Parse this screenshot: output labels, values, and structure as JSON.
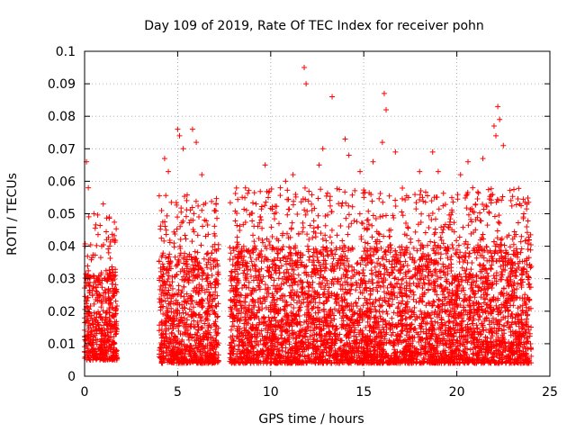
{
  "chart_data": {
    "type": "scatter",
    "title": "Day 109 of 2019, Rate Of TEC Index for receiver pohn",
    "xlabel": "GPS time / hours",
    "ylabel": "ROTI / TECUs",
    "xlim": [
      0,
      25
    ],
    "ylim": [
      0,
      0.1
    ],
    "x_ticks": [
      0,
      5,
      10,
      15,
      20,
      25
    ],
    "x_tick_labels": [
      "0",
      "5",
      "10",
      "15",
      "20",
      "25"
    ],
    "y_ticks": [
      0,
      0.01,
      0.02,
      0.03,
      0.04,
      0.05,
      0.06,
      0.07,
      0.08,
      0.09,
      0.1
    ],
    "y_tick_labels": [
      "0",
      "0.01",
      "0.02",
      "0.03",
      "0.04",
      "0.05",
      "0.06",
      "0.07",
      "0.08",
      "0.09",
      "0.1"
    ],
    "grid": true,
    "marker": "+",
    "series": [
      {
        "name": "ROTI",
        "color": "#ff0000",
        "segments": [
          {
            "x_start": 0.0,
            "x_end": 1.75,
            "y_min": 0.005,
            "y_max": 0.032
          },
          {
            "x_start": 4.0,
            "x_end": 7.2,
            "y_min": 0.004,
            "y_max": 0.038
          },
          {
            "x_start": 7.8,
            "x_end": 24.0,
            "y_min": 0.004,
            "y_max": 0.04
          }
        ],
        "gap_hours": [
          [
            1.75,
            4.0
          ],
          [
            7.2,
            7.8
          ]
        ],
        "notable_points": [
          {
            "x": 0.1,
            "y": 0.066
          },
          {
            "x": 0.2,
            "y": 0.058
          },
          {
            "x": 0.5,
            "y": 0.05
          },
          {
            "x": 1.0,
            "y": 0.053
          },
          {
            "x": 1.5,
            "y": 0.042
          },
          {
            "x": 4.3,
            "y": 0.067
          },
          {
            "x": 4.5,
            "y": 0.063
          },
          {
            "x": 5.0,
            "y": 0.076
          },
          {
            "x": 5.1,
            "y": 0.074
          },
          {
            "x": 5.3,
            "y": 0.07
          },
          {
            "x": 5.8,
            "y": 0.076
          },
          {
            "x": 6.0,
            "y": 0.072
          },
          {
            "x": 6.3,
            "y": 0.062
          },
          {
            "x": 7.0,
            "y": 0.051
          },
          {
            "x": 9.7,
            "y": 0.065
          },
          {
            "x": 10.8,
            "y": 0.06
          },
          {
            "x": 11.2,
            "y": 0.062
          },
          {
            "x": 11.8,
            "y": 0.095
          },
          {
            "x": 11.9,
            "y": 0.09
          },
          {
            "x": 12.8,
            "y": 0.07
          },
          {
            "x": 12.6,
            "y": 0.065
          },
          {
            "x": 13.3,
            "y": 0.086
          },
          {
            "x": 14.0,
            "y": 0.073
          },
          {
            "x": 14.2,
            "y": 0.068
          },
          {
            "x": 14.8,
            "y": 0.063
          },
          {
            "x": 15.5,
            "y": 0.066
          },
          {
            "x": 16.1,
            "y": 0.087
          },
          {
            "x": 16.2,
            "y": 0.082
          },
          {
            "x": 16.0,
            "y": 0.072
          },
          {
            "x": 16.7,
            "y": 0.069
          },
          {
            "x": 18.0,
            "y": 0.063
          },
          {
            "x": 18.7,
            "y": 0.069
          },
          {
            "x": 19.0,
            "y": 0.063
          },
          {
            "x": 20.2,
            "y": 0.062
          },
          {
            "x": 20.6,
            "y": 0.066
          },
          {
            "x": 21.4,
            "y": 0.067
          },
          {
            "x": 22.0,
            "y": 0.077
          },
          {
            "x": 22.2,
            "y": 0.083
          },
          {
            "x": 22.3,
            "y": 0.079
          },
          {
            "x": 22.5,
            "y": 0.071
          },
          {
            "x": 22.1,
            "y": 0.074
          },
          {
            "x": 23.6,
            "y": 0.05
          }
        ]
      }
    ]
  }
}
